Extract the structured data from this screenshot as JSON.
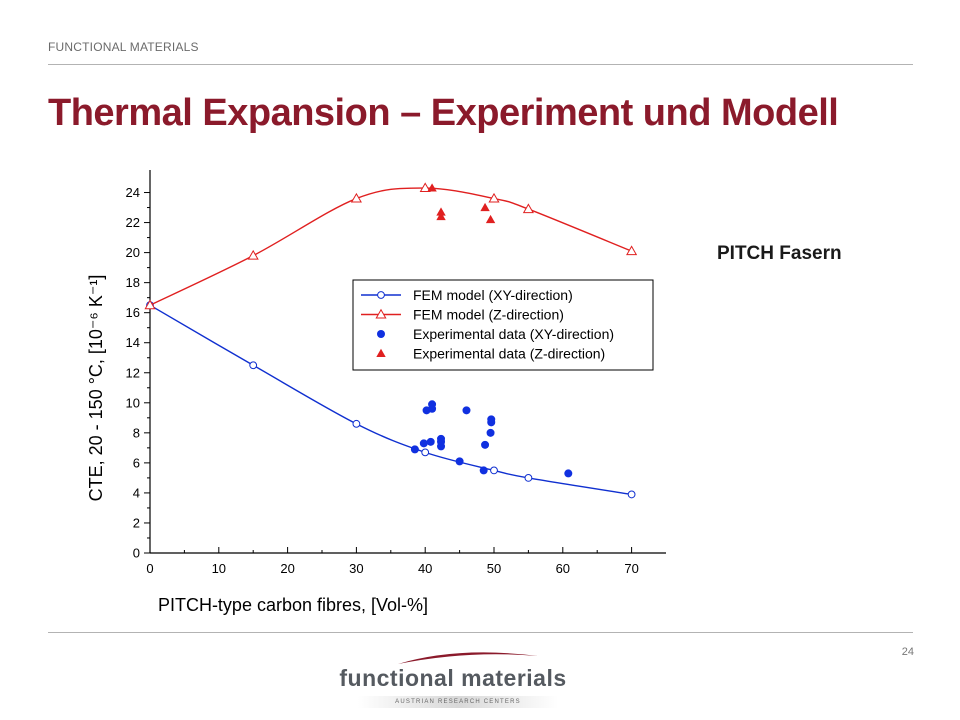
{
  "slide": {
    "header_label": "FUNCTIONAL MATERIALS",
    "title": "Thermal Expansion – Experiment und Modell",
    "side_label": "PITCH Fasern",
    "page_number": "24",
    "logo_text": "functional materials",
    "logo_subtext": "AUSTRIAN RESEARCH CENTERS",
    "title_color": "#8b1a2b"
  },
  "chart_data": {
    "type": "scatter",
    "title": "",
    "xlabel": "PITCH-type carbon fibres, [Vol-%]",
    "ylabel": "CTE, 20 - 150 °C, [10⁻⁶ K⁻¹]",
    "xlim": [
      0,
      75
    ],
    "ylim": [
      0,
      25.5
    ],
    "x_ticks": [
      0,
      10,
      20,
      30,
      40,
      50,
      60,
      70
    ],
    "y_ticks": [
      0,
      2,
      4,
      6,
      8,
      10,
      12,
      14,
      16,
      18,
      20,
      22,
      24
    ],
    "grid": false,
    "legend_position": "upper-middle",
    "series": [
      {
        "name": "FEM model (XY-direction)",
        "kind": "line-markers",
        "marker": "circle-open",
        "color": "#1030d0",
        "x": [
          0,
          15,
          30,
          40,
          50,
          55,
          70
        ],
        "y": [
          16.5,
          12.5,
          8.6,
          6.7,
          5.5,
          5.0,
          3.9
        ]
      },
      {
        "name": "FEM model (Z-direction)",
        "kind": "line-markers",
        "marker": "triangle-open",
        "color": "#e02020",
        "x": [
          0,
          15,
          30,
          40,
          50,
          55,
          70
        ],
        "y": [
          16.5,
          19.8,
          23.6,
          24.3,
          23.6,
          22.9,
          20.1
        ]
      },
      {
        "name": "Experimental data (XY-direction)",
        "kind": "markers",
        "marker": "circle-filled",
        "color": "#1030e0",
        "x": [
          38.5,
          39.8,
          40.2,
          40.8,
          41.0,
          41.0,
          42.3,
          42.3,
          42.3,
          45.0,
          46.0,
          48.5,
          48.7,
          49.5,
          49.6,
          49.6,
          60.8
        ],
        "y": [
          6.9,
          7.3,
          9.5,
          7.4,
          9.6,
          9.9,
          7.1,
          7.4,
          7.6,
          6.1,
          9.5,
          5.5,
          7.2,
          8.0,
          8.7,
          8.9,
          5.3
        ]
      },
      {
        "name": "Experimental data (Z-direction)",
        "kind": "markers",
        "marker": "triangle-filled",
        "color": "#e02020",
        "x": [
          41.0,
          42.3,
          42.3,
          48.7,
          49.5
        ],
        "y": [
          24.3,
          22.4,
          22.7,
          23.0,
          22.2
        ]
      }
    ]
  }
}
